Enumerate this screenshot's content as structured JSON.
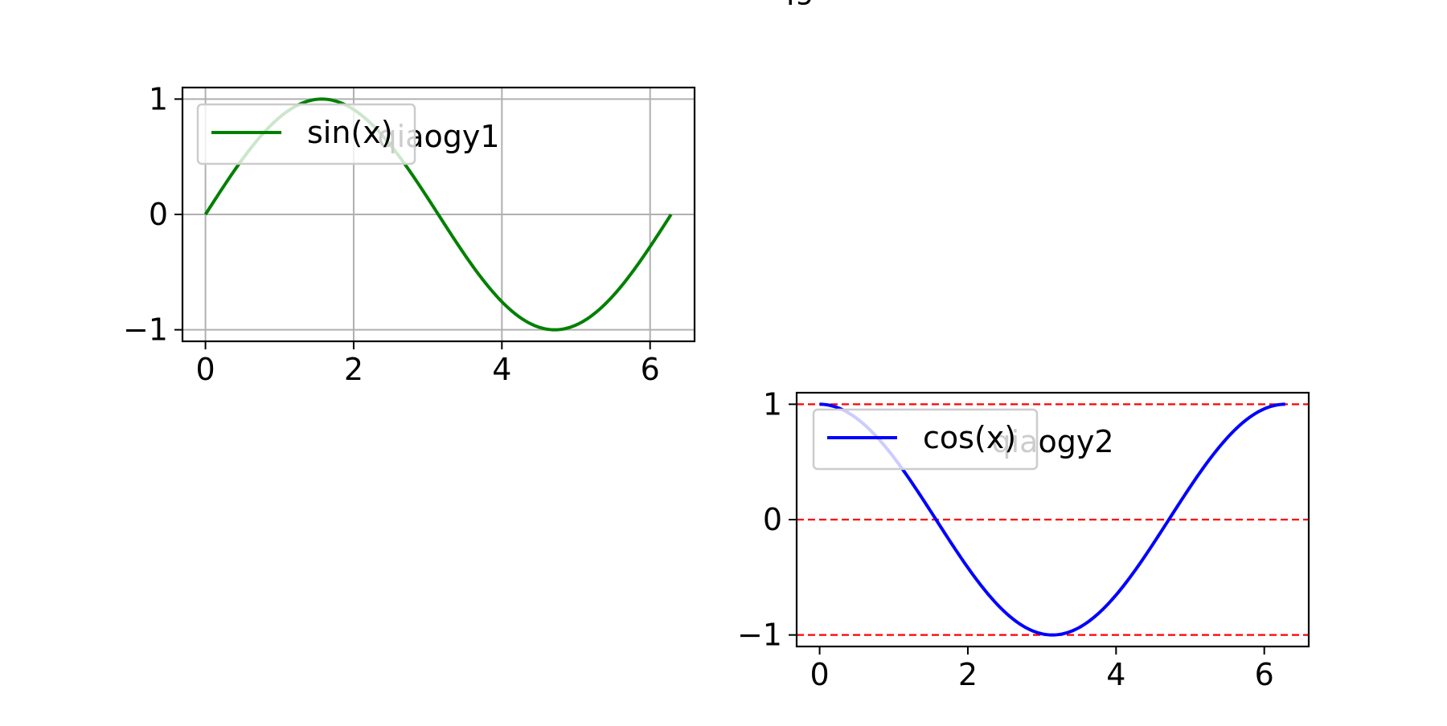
{
  "figure": {
    "title": "rqgco"
  },
  "colors": {
    "sin_line": "#008000",
    "cos_line": "#0000ff",
    "grid_gray": "#b0b0b0",
    "hline_red": "#ff0000",
    "axis": "#000000"
  },
  "chart_data": [
    {
      "type": "line",
      "title": "qiaogy1",
      "xlabel": "",
      "ylabel": "",
      "xlim": [
        -0.31,
        6.6
      ],
      "ylim": [
        -1.1,
        1.1
      ],
      "xticks": [
        0,
        2,
        4,
        6
      ],
      "yticks": [
        -1,
        0,
        1
      ],
      "xtick_labels": [
        "0",
        "2",
        "4",
        "6"
      ],
      "ytick_labels": [
        "−1",
        "0",
        "1"
      ],
      "grid": true,
      "grid_style": "solid gray",
      "legend": {
        "placement": "upper-left",
        "entries": [
          "sin(x)"
        ]
      },
      "series": [
        {
          "name": "sin(x)",
          "function": "sin",
          "x_range": [
            0,
            6.283
          ],
          "color": "#008000",
          "x": [
            0,
            0.785,
            1.571,
            2.356,
            3.142,
            3.927,
            4.712,
            5.498,
            6.283
          ],
          "y": [
            0,
            0.707,
            1,
            0.707,
            0,
            -0.707,
            -1,
            -0.707,
            0
          ]
        }
      ]
    },
    {
      "type": "line",
      "title": "qiaogy2",
      "xlabel": "",
      "ylabel": "",
      "xlim": [
        -0.31,
        6.6
      ],
      "ylim": [
        -1.1,
        1.1
      ],
      "xticks": [
        0,
        2,
        4,
        6
      ],
      "yticks": [
        -1,
        0,
        1
      ],
      "xtick_labels": [
        "0",
        "2",
        "4",
        "6"
      ],
      "ytick_labels": [
        "−1",
        "0",
        "1"
      ],
      "grid": false,
      "hlines": [
        -1,
        0,
        1
      ],
      "hline_style": "dashed red",
      "legend": {
        "placement": "upper-left",
        "entries": [
          "cos(x)"
        ]
      },
      "series": [
        {
          "name": "cos(x)",
          "function": "cos",
          "x_range": [
            0,
            6.283
          ],
          "color": "#0000ff",
          "x": [
            0,
            0.785,
            1.571,
            2.356,
            3.142,
            3.927,
            4.712,
            5.498,
            6.283
          ],
          "y": [
            1,
            0.707,
            0,
            -0.707,
            -1,
            -0.707,
            0,
            0.707,
            1
          ]
        }
      ]
    }
  ]
}
